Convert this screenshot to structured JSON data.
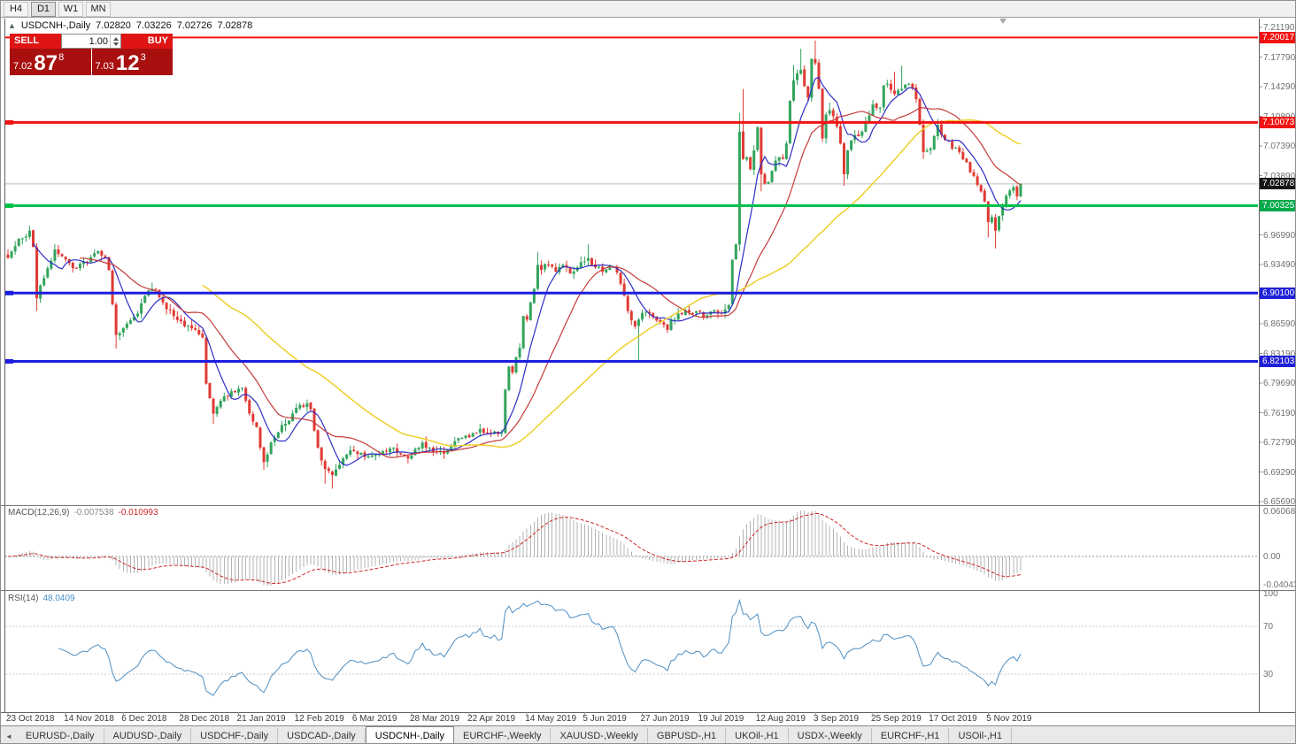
{
  "toolbar": {
    "timeframes": [
      "H4",
      "D1",
      "W1",
      "MN"
    ],
    "active": "D1"
  },
  "info_line": {
    "expand_arrow": "▲",
    "symbol": "USDCNH-,Daily",
    "open": "7.02820",
    "high": "7.03226",
    "low": "7.02726",
    "close": "7.02878"
  },
  "one_click": {
    "sell_label": "SELL",
    "buy_label": "BUY",
    "volume": "1.00",
    "bid_small": "7.02",
    "bid_big": "87",
    "bid_sup": "8",
    "ask_small": "7.03",
    "ask_big": "12",
    "ask_sup": "3"
  },
  "chart_data": {
    "type": "candlestick",
    "symbol": "USDCNH",
    "period": "Daily",
    "last_values": {
      "open": 7.0282,
      "high": 7.03226,
      "low": 7.02726,
      "close": 7.02878
    },
    "bid": "7.02878",
    "ask": "7.03123",
    "current_price": 7.02878,
    "num_candles": 282,
    "x_labels": [
      "23 Oct 2018",
      "14 Nov 2018",
      "6 Dec 2018",
      "28 Dec 2018",
      "21 Jan 2019",
      "12 Feb 2019",
      "6 Mar 2019",
      "28 Mar 2019",
      "22 Apr 2019",
      "14 May 2019",
      "5 Jun 2019",
      "27 Jun 2019",
      "19 Jul 2019",
      "12 Aug 2019",
      "3 Sep 2019",
      "25 Sep 2019",
      "17 Oct 2019",
      "5 Nov 2019"
    ],
    "y_axis_ticks": [
      "7.21190",
      "7.17790",
      "7.14290",
      "7.10890",
      "7.07390",
      "7.03890",
      "7.00390",
      "6.96990",
      "6.93490",
      "6.90090",
      "6.86590",
      "6.83190",
      "6.79690",
      "6.76190",
      "6.72790",
      "6.69290",
      "6.65690"
    ],
    "price_badges": [
      {
        "label": "7.20017",
        "price": 7.20017,
        "bg": "#f31212"
      },
      {
        "label": "7.10073",
        "price": 7.10073,
        "bg": "#f31212"
      },
      {
        "label": "7.02878",
        "price": 7.02878,
        "bg": "#151515"
      },
      {
        "label": "7.00325",
        "price": 7.00325,
        "bg": "#00a94a"
      },
      {
        "label": "6.90100",
        "price": 6.901,
        "bg": "#2020d8"
      },
      {
        "label": "6.82103",
        "price": 6.82103,
        "bg": "#2020d8"
      }
    ],
    "horizontal_lines": [
      {
        "price": 7.20017,
        "color": "#f31212",
        "w": 2,
        "marker": false
      },
      {
        "price": 7.10073,
        "color": "#f31212",
        "w": 3,
        "marker": true
      },
      {
        "price": 7.00325,
        "color": "#00c24b",
        "w": 3,
        "marker": true
      },
      {
        "price": 6.901,
        "color": "#1d1de0",
        "w": 3,
        "marker": true
      },
      {
        "price": 6.82103,
        "color": "#1d1de0",
        "w": 3,
        "marker": true
      }
    ],
    "candle_colors": {
      "up": "#33a45c",
      "down": "#e03a33"
    },
    "current_price_line_color": "#bdbdbd",
    "moving_averages": [
      {
        "period": 8,
        "color": "#2d2dc4",
        "width": 1.2
      },
      {
        "period": 21,
        "color": "#c43a3a",
        "width": 1.2
      },
      {
        "period": 55,
        "color": "#eecf2a",
        "width": 1.5
      }
    ],
    "price_anchors": [
      [
        0,
        6.942
      ],
      [
        2,
        6.956
      ],
      [
        4,
        6.965
      ],
      [
        6,
        6.974
      ],
      [
        7,
        6.955
      ],
      [
        8,
        6.895
      ],
      [
        9,
        6.91
      ],
      [
        11,
        6.93
      ],
      [
        13,
        6.952
      ],
      [
        15,
        6.944
      ],
      [
        17,
        6.936
      ],
      [
        19,
        6.93
      ],
      [
        21,
        6.938
      ],
      [
        23,
        6.943
      ],
      [
        25,
        6.95
      ],
      [
        27,
        6.943
      ],
      [
        28,
        6.928
      ],
      [
        29,
        6.888
      ],
      [
        30,
        6.852
      ],
      [
        32,
        6.86
      ],
      [
        34,
        6.869
      ],
      [
        36,
        6.877
      ],
      [
        38,
        6.898
      ],
      [
        40,
        6.906
      ],
      [
        42,
        6.896
      ],
      [
        44,
        6.882
      ],
      [
        46,
        6.874
      ],
      [
        48,
        6.868
      ],
      [
        50,
        6.863
      ],
      [
        52,
        6.858
      ],
      [
        54,
        6.849
      ],
      [
        55,
        6.795
      ],
      [
        56,
        6.778
      ],
      [
        57,
        6.76
      ],
      [
        59,
        6.775
      ],
      [
        61,
        6.78
      ],
      [
        63,
        6.785
      ],
      [
        65,
        6.79
      ],
      [
        66,
        6.775
      ],
      [
        67,
        6.76
      ],
      [
        69,
        6.744
      ],
      [
        70,
        6.72
      ],
      [
        71,
        6.703
      ],
      [
        72,
        6.712
      ],
      [
        73,
        6.726
      ],
      [
        75,
        6.738
      ],
      [
        77,
        6.748
      ],
      [
        79,
        6.76
      ],
      [
        81,
        6.77
      ],
      [
        83,
        6.772
      ],
      [
        84,
        6.765
      ],
      [
        85,
        6.74
      ],
      [
        86,
        6.72
      ],
      [
        87,
        6.705
      ],
      [
        88,
        6.695
      ],
      [
        90,
        6.688
      ],
      [
        92,
        6.7
      ],
      [
        94,
        6.712
      ],
      [
        96,
        6.716
      ],
      [
        98,
        6.714
      ],
      [
        100,
        6.71
      ],
      [
        102,
        6.712
      ],
      [
        104,
        6.716
      ],
      [
        106,
        6.719
      ],
      [
        108,
        6.714
      ],
      [
        110,
        6.71
      ],
      [
        112,
        6.711
      ],
      [
        114,
        6.72
      ],
      [
        115,
        6.726
      ],
      [
        117,
        6.72
      ],
      [
        119,
        6.715
      ],
      [
        121,
        6.713
      ],
      [
        123,
        6.722
      ],
      [
        125,
        6.731
      ],
      [
        127,
        6.734
      ],
      [
        129,
        6.737
      ],
      [
        131,
        6.742
      ],
      [
        133,
        6.737
      ],
      [
        135,
        6.739
      ],
      [
        137,
        6.737
      ],
      [
        138,
        6.788
      ],
      [
        139,
        6.815
      ],
      [
        140,
        6.808
      ],
      [
        141,
        6.826
      ],
      [
        142,
        6.837
      ],
      [
        143,
        6.874
      ],
      [
        144,
        6.87
      ],
      [
        145,
        6.89
      ],
      [
        146,
        6.906
      ],
      [
        147,
        6.934
      ],
      [
        148,
        6.928
      ],
      [
        150,
        6.934
      ],
      [
        152,
        6.926
      ],
      [
        154,
        6.934
      ],
      [
        156,
        6.924
      ],
      [
        158,
        6.931
      ],
      [
        160,
        6.938
      ],
      [
        161,
        6.942
      ],
      [
        163,
        6.931
      ],
      [
        165,
        6.926
      ],
      [
        167,
        6.931
      ],
      [
        169,
        6.925
      ],
      [
        170,
        6.912
      ],
      [
        171,
        6.898
      ],
      [
        172,
        6.88
      ],
      [
        173,
        6.869
      ],
      [
        174,
        6.862
      ],
      [
        175,
        6.87
      ],
      [
        177,
        6.879
      ],
      [
        179,
        6.873
      ],
      [
        181,
        6.867
      ],
      [
        183,
        6.858
      ],
      [
        184,
        6.869
      ],
      [
        186,
        6.877
      ],
      [
        188,
        6.881
      ],
      [
        190,
        6.877
      ],
      [
        192,
        6.879
      ],
      [
        194,
        6.875
      ],
      [
        196,
        6.881
      ],
      [
        198,
        6.877
      ],
      [
        200,
        6.887
      ],
      [
        201,
        6.94
      ],
      [
        202,
        6.958
      ],
      [
        203,
        7.09
      ],
      [
        204,
        7.058
      ],
      [
        205,
        7.06
      ],
      [
        206,
        7.046
      ],
      [
        207,
        7.068
      ],
      [
        208,
        7.095
      ],
      [
        209,
        7.04
      ],
      [
        210,
        7.029
      ],
      [
        211,
        7.031
      ],
      [
        212,
        7.044
      ],
      [
        213,
        7.056
      ],
      [
        214,
        7.06
      ],
      [
        215,
        7.058
      ],
      [
        216,
        7.076
      ],
      [
        217,
        7.126
      ],
      [
        218,
        7.15
      ],
      [
        219,
        7.158
      ],
      [
        220,
        7.162
      ],
      [
        221,
        7.143
      ],
      [
        222,
        7.13
      ],
      [
        223,
        7.175
      ],
      [
        224,
        7.17
      ],
      [
        225,
        7.14
      ],
      [
        226,
        7.082
      ],
      [
        227,
        7.11
      ],
      [
        228,
        7.115
      ],
      [
        229,
        7.108
      ],
      [
        230,
        7.096
      ],
      [
        231,
        7.076
      ],
      [
        232,
        7.04
      ],
      [
        233,
        7.068
      ],
      [
        235,
        7.086
      ],
      [
        237,
        7.09
      ],
      [
        238,
        7.102
      ],
      [
        240,
        7.122
      ],
      [
        242,
        7.118
      ],
      [
        243,
        7.144
      ],
      [
        244,
        7.146
      ],
      [
        246,
        7.134
      ],
      [
        248,
        7.14
      ],
      [
        250,
        7.146
      ],
      [
        252,
        7.128
      ],
      [
        253,
        7.098
      ],
      [
        254,
        7.066
      ],
      [
        256,
        7.07
      ],
      [
        258,
        7.098
      ],
      [
        260,
        7.08
      ],
      [
        262,
        7.07
      ],
      [
        264,
        7.066
      ],
      [
        266,
        7.054
      ],
      [
        268,
        7.038
      ],
      [
        270,
        7.02
      ],
      [
        271,
        7.008
      ],
      [
        272,
        6.984
      ],
      [
        273,
        6.99
      ],
      [
        274,
        6.974
      ],
      [
        275,
        6.991
      ],
      [
        276,
        7.005
      ],
      [
        277,
        7.015
      ],
      [
        278,
        7.021
      ],
      [
        279,
        7.025
      ],
      [
        280,
        7.014
      ],
      [
        281,
        7.0288
      ]
    ],
    "wick_overrides": {
      "highs": [
        [
          6,
          6.98
        ],
        [
          40,
          6.913
        ],
        [
          147,
          6.949
        ],
        [
          161,
          6.958
        ],
        [
          203,
          7.112
        ],
        [
          204,
          7.14
        ],
        [
          218,
          7.168
        ],
        [
          220,
          7.187
        ],
        [
          224,
          7.1965
        ],
        [
          228,
          7.124
        ],
        [
          246,
          7.16
        ],
        [
          248,
          7.167
        ],
        [
          258,
          7.105
        ]
      ],
      "lows": [
        [
          8,
          6.88
        ],
        [
          30,
          6.836
        ],
        [
          57,
          6.748
        ],
        [
          71,
          6.694
        ],
        [
          88,
          6.678
        ],
        [
          90,
          6.672
        ],
        [
          138,
          6.737
        ],
        [
          175,
          6.822
        ],
        [
          203,
          6.95
        ],
        [
          209,
          7.02
        ],
        [
          232,
          7.0265
        ],
        [
          254,
          7.058
        ],
        [
          272,
          6.966
        ],
        [
          274,
          6.953
        ]
      ]
    },
    "macd": {
      "title": "MACD(12,26,9)",
      "main_value": "-0.007538",
      "signal_value": "-0.010993",
      "fast": 12,
      "slow": 26,
      "signal_period": 9,
      "axis_labels": [
        "0.060687",
        "0.00",
        "-0.040431"
      ],
      "hist_color": "#b4b4b4",
      "signal_color": "#cf2727"
    },
    "rsi": {
      "title": "RSI(14)",
      "value": "48.0409",
      "period": 14,
      "line_color": "#4d8fc4",
      "levels": [
        {
          "label": "100",
          "value": 100,
          "dashed": false
        },
        {
          "label": "70",
          "value": 70,
          "dashed": true
        },
        {
          "label": "30",
          "value": 30,
          "dashed": true
        }
      ]
    }
  },
  "tabs": {
    "scroll_left_arrow": "◄",
    "active_index": 4,
    "items": [
      "EURUSD-,Daily",
      "AUDUSD-,Daily",
      "USDCHF-,Daily",
      "USDCAD-,Daily",
      "USDCNH-,Daily",
      "EURCHF-,Weekly",
      "XAUUSD-,Weekly",
      "GBPUSD-,H1",
      "UKOil-,H1",
      "USDX-,Weekly",
      "EURCHF-,H1",
      "USOil-,H1"
    ]
  }
}
